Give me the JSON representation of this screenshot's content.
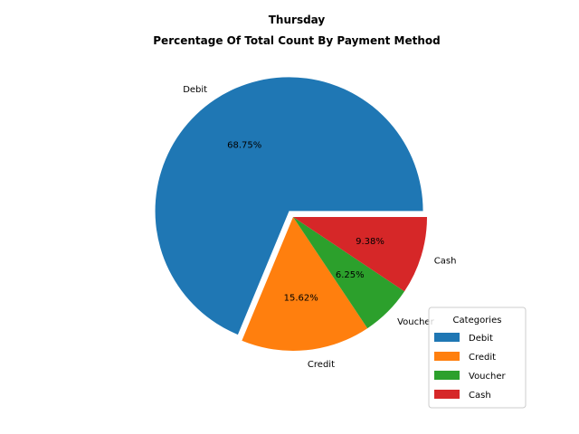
{
  "chart_data": {
    "type": "pie",
    "title": "Thursday",
    "subtitle": "Percentage Of Total Count By Payment Method",
    "categories": [
      "Debit",
      "Credit",
      "Voucher",
      "Cash"
    ],
    "values": [
      68.75,
      15.62,
      6.25,
      9.38
    ],
    "value_labels": [
      "68.75%",
      "15.62%",
      "6.25%",
      "9.38%"
    ],
    "colors": [
      "#1f77b4",
      "#ff7f0e",
      "#2ca02c",
      "#d62728"
    ],
    "exploded": [
      "Debit"
    ],
    "legend": {
      "title": "Categories",
      "placement": "lower-right",
      "entries": [
        "Debit",
        "Credit",
        "Voucher",
        "Cash"
      ]
    }
  }
}
